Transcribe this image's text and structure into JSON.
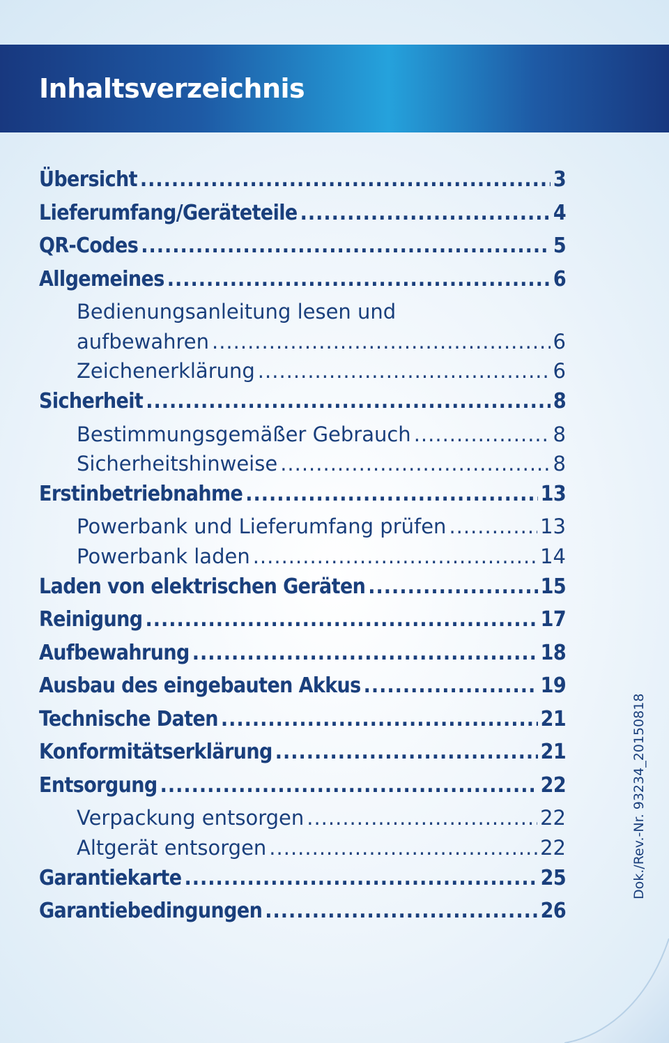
{
  "header": {
    "title": "Inhaltsverzeichnis"
  },
  "toc": {
    "e0": {
      "label": "Übersicht",
      "page": "3"
    },
    "e1": {
      "label": "Lieferumfang/Geräteteile",
      "page": "4"
    },
    "e2": {
      "label": "QR-Codes",
      "page": "5"
    },
    "e3": {
      "label": "Allgemeines",
      "page": "6"
    },
    "e4": {
      "label_line1": "Bedienungsanleitung lesen und",
      "label_line2": "aufbewahren",
      "page": "6"
    },
    "e5": {
      "label": "Zeichenerklärung",
      "page": "6"
    },
    "e6": {
      "label": "Sicherheit",
      "page": "8"
    },
    "e7": {
      "label": "Bestimmungsgemäßer Gebrauch",
      "page": "8"
    },
    "e8": {
      "label": "Sicherheitshinweise",
      "page": "8"
    },
    "e9": {
      "label": "Erstinbetriebnahme",
      "page": "13"
    },
    "e10": {
      "label": "Powerbank und Lieferumfang prüfen",
      "page": "13"
    },
    "e11": {
      "label": "Powerbank laden",
      "page": "14"
    },
    "e12": {
      "label": "Laden von elektrischen Geräten",
      "page": "15"
    },
    "e13": {
      "label": "Reinigung",
      "page": "17"
    },
    "e14": {
      "label": "Aufbewahrung",
      "page": "18"
    },
    "e15": {
      "label": "Ausbau des eingebauten Akkus",
      "page": "19"
    },
    "e16": {
      "label": "Technische Daten",
      "page": "21"
    },
    "e17": {
      "label": "Konformitätserklärung",
      "page": "21"
    },
    "e18": {
      "label": "Entsorgung",
      "page": "22"
    },
    "e19": {
      "label": "Verpackung entsorgen",
      "page": "22"
    },
    "e20": {
      "label": "Altgerät entsorgen",
      "page": "22"
    },
    "e21": {
      "label": "Garantiekarte",
      "page": "25"
    },
    "e22": {
      "label": "Garantiebedingungen",
      "page": "26"
    }
  },
  "footer": {
    "doc_number": "Dok./Rev.-Nr. 93234_20150818"
  },
  "colors": {
    "header_dark_blue": "#18387f",
    "header_light_blue": "#25a2dc",
    "text_blue": "#1a3f7c",
    "background_light": "#e6f1f9"
  }
}
